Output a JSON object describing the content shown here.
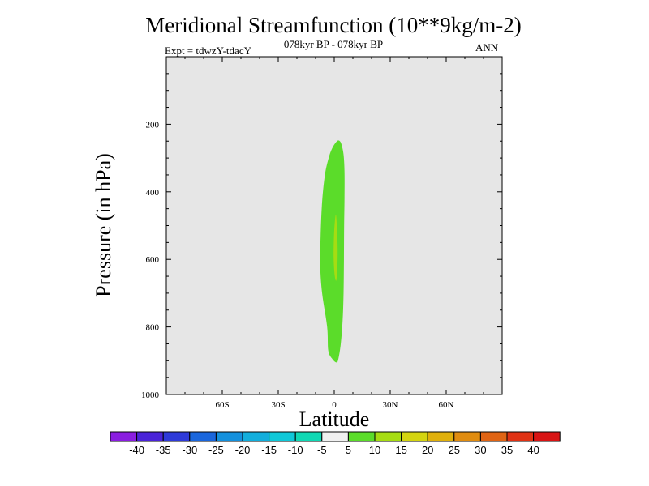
{
  "chart_data": {
    "type": "contour",
    "title": "Meridional Streamfunction (10**9kg/m-2)",
    "subtitle": "078kyr BP - 078kyr BP",
    "left_label": "Expt = tdwzY-tdacY",
    "right_label": "ANN",
    "xlabel": "Latitude",
    "ylabel": "Pressure (in hPa)",
    "xlim": [
      -90,
      90
    ],
    "ylim": [
      1000,
      0
    ],
    "x_ticks": [
      {
        "value": -60,
        "label": "60S"
      },
      {
        "value": -30,
        "label": "30S"
      },
      {
        "value": 0,
        "label": "0"
      },
      {
        "value": 30,
        "label": "30N"
      },
      {
        "value": 60,
        "label": "60N"
      }
    ],
    "y_ticks": [
      {
        "value": 200,
        "label": "200"
      },
      {
        "value": 400,
        "label": "400"
      },
      {
        "value": 600,
        "label": "600"
      },
      {
        "value": 800,
        "label": "800"
      },
      {
        "value": 1000,
        "label": "1000"
      }
    ],
    "background_color": "#e6e6e6",
    "contour_regions": [
      {
        "level_range": [
          5,
          10
        ],
        "color": "#5bdc2a",
        "points": [
          [
            3,
            250
          ],
          [
            4,
            262
          ],
          [
            5,
            290
          ],
          [
            5.5,
            340
          ],
          [
            5.5,
            420
          ],
          [
            5.3,
            500
          ],
          [
            5.2,
            600
          ],
          [
            5,
            700
          ],
          [
            4.5,
            780
          ],
          [
            3.5,
            850
          ],
          [
            2.2,
            895
          ],
          [
            1.2,
            905
          ],
          [
            -1,
            895
          ],
          [
            -3.2,
            870
          ],
          [
            -3.8,
            800
          ],
          [
            -6.5,
            700
          ],
          [
            -7.5,
            620
          ],
          [
            -7.3,
            530
          ],
          [
            -6.5,
            430
          ],
          [
            -5,
            350
          ],
          [
            -3,
            300
          ],
          [
            -1,
            270
          ],
          [
            1.5,
            250
          ]
        ]
      },
      {
        "level_range": [
          10,
          15
        ],
        "color": "#a6dc12",
        "points": [
          [
            1,
            470
          ],
          [
            1.7,
            540
          ],
          [
            1.8,
            600
          ],
          [
            1.2,
            660
          ],
          [
            0.3,
            650
          ],
          [
            -0.3,
            600
          ],
          [
            -0.2,
            540
          ],
          [
            0.3,
            490
          ]
        ]
      }
    ],
    "colorbar": {
      "labels": [
        "-40",
        "-35",
        "-30",
        "-25",
        "-20",
        "-15",
        "-10",
        "-5",
        "5",
        "10",
        "15",
        "20",
        "25",
        "30",
        "35",
        "40"
      ],
      "colors": [
        "#8a1ee0",
        "#4a24d8",
        "#2e3ad8",
        "#1a66dc",
        "#1490dc",
        "#12aedc",
        "#10c8d8",
        "#10d8b4",
        "#f0f0f0",
        "#5bdc2a",
        "#a6dc12",
        "#d4d410",
        "#e0b00c",
        "#e08c10",
        "#e06414",
        "#e03214",
        "#d81414"
      ]
    }
  }
}
